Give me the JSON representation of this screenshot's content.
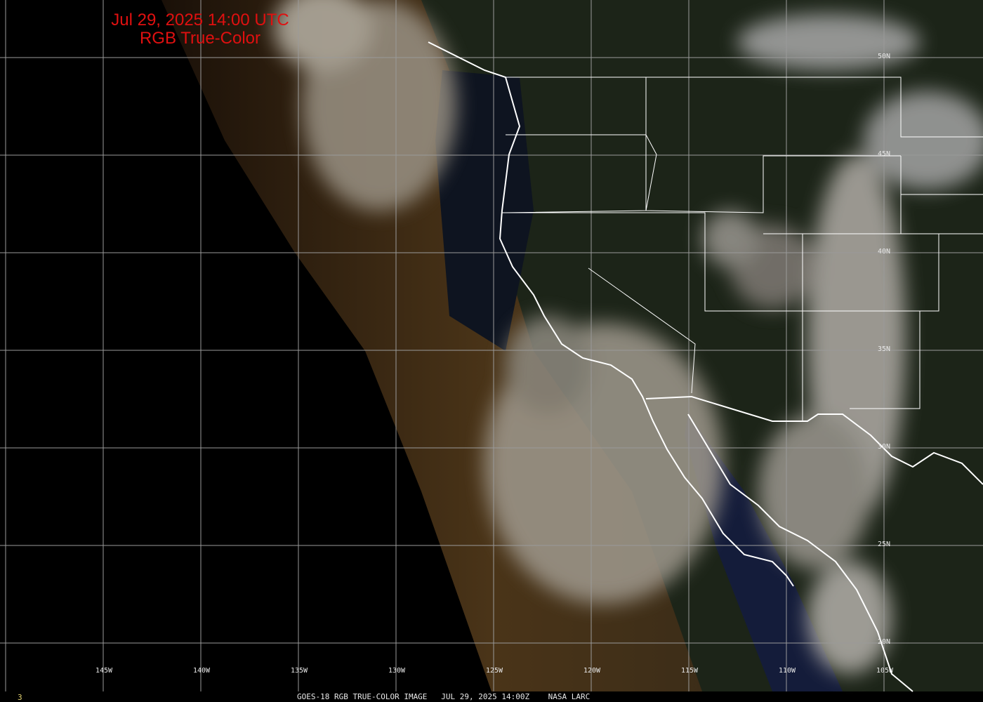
{
  "title": {
    "line1": "Jul 29, 2025 14:00 UTC",
    "line2": "RGB True-Color"
  },
  "longitude_labels": [
    "145W",
    "140W",
    "135W",
    "130W",
    "125W",
    "120W",
    "115W",
    "110W",
    "105W"
  ],
  "latitude_labels": [
    "50N",
    "45N",
    "40N",
    "35N",
    "30N",
    "25N",
    "20N"
  ],
  "footer": {
    "frame_number": "3",
    "caption": "GOES-18 RGB TRUE-COLOR IMAGE   JUL 29, 2025 14:00Z    NASA LARC"
  },
  "colors": {
    "title": "#e01010",
    "grid": "#9a9a9a",
    "boundaries": "#ffffff",
    "label": "#e8e8e8",
    "frame_number": "#e0d070"
  }
}
